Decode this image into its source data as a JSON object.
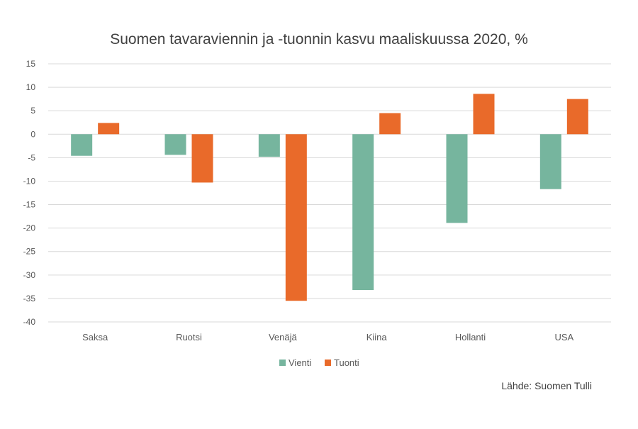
{
  "chart_data": {
    "type": "bar",
    "title": "Suomen tavaraviennin ja -tuonnin kasvu maaliskuussa 2020, %",
    "xlabel": "",
    "ylabel": "",
    "categories": [
      "Saksa",
      "Ruotsi",
      "Venäjä",
      "Kiina",
      "Hollanti",
      "USA"
    ],
    "series": [
      {
        "name": "Vienti",
        "color": "#76b59e",
        "values": [
          -4.6,
          -4.4,
          -4.8,
          -33.2,
          -18.9,
          -11.7
        ]
      },
      {
        "name": "Tuonti",
        "color": "#e96a2a",
        "values": [
          2.4,
          -10.3,
          -35.5,
          4.5,
          8.6,
          7.5
        ]
      }
    ],
    "ylim": [
      -40,
      15
    ],
    "yticks": [
      15,
      10,
      5,
      0,
      -5,
      -10,
      -15,
      -20,
      -25,
      -30,
      -35,
      -40
    ],
    "grid": true,
    "legend": "bottom",
    "source": "Lähde: Suomen Tulli"
  }
}
